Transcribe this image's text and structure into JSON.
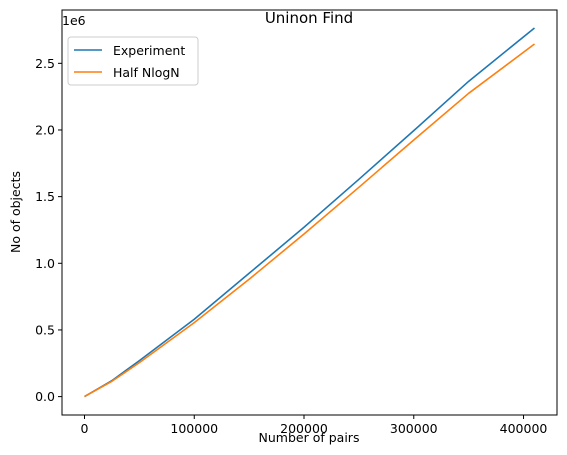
{
  "chart_data": {
    "type": "line",
    "title": "Uninon Find",
    "xlabel": "Number of pairs",
    "ylabel": "No of objects",
    "y_offset_text": "1e6",
    "x_ticks": [
      0,
      100000,
      200000,
      300000,
      400000
    ],
    "x_tick_labels": [
      "0",
      "100000",
      "200000",
      "300000",
      "400000"
    ],
    "y_ticks": [
      0.0,
      0.5,
      1.0,
      1.5,
      2.0,
      2.5
    ],
    "y_tick_labels": [
      "0.0",
      "0.5",
      "1.0",
      "1.5",
      "2.0",
      "2.5"
    ],
    "xlim": [
      -20500,
      430500
    ],
    "ylim": [
      -138000,
      2900000
    ],
    "grid": false,
    "legend_position": "upper-left",
    "series": [
      {
        "name": "Experiment",
        "color": "#1f77b4",
        "x": [
          0,
          25000,
          50000,
          100000,
          150000,
          200000,
          250000,
          300000,
          350000,
          410000
        ],
        "y": [
          0,
          120000,
          270000,
          580000,
          925000,
          1270000,
          1630000,
          1995000,
          2365000,
          2765000
        ]
      },
      {
        "name": "Half NlogN",
        "color": "#ff7f0e",
        "x": [
          0,
          25000,
          50000,
          100000,
          150000,
          200000,
          250000,
          300000,
          350000,
          410000
        ],
        "y": [
          0,
          115000,
          255000,
          555000,
          880000,
          1220000,
          1570000,
          1925000,
          2275000,
          2645000
        ]
      }
    ]
  }
}
